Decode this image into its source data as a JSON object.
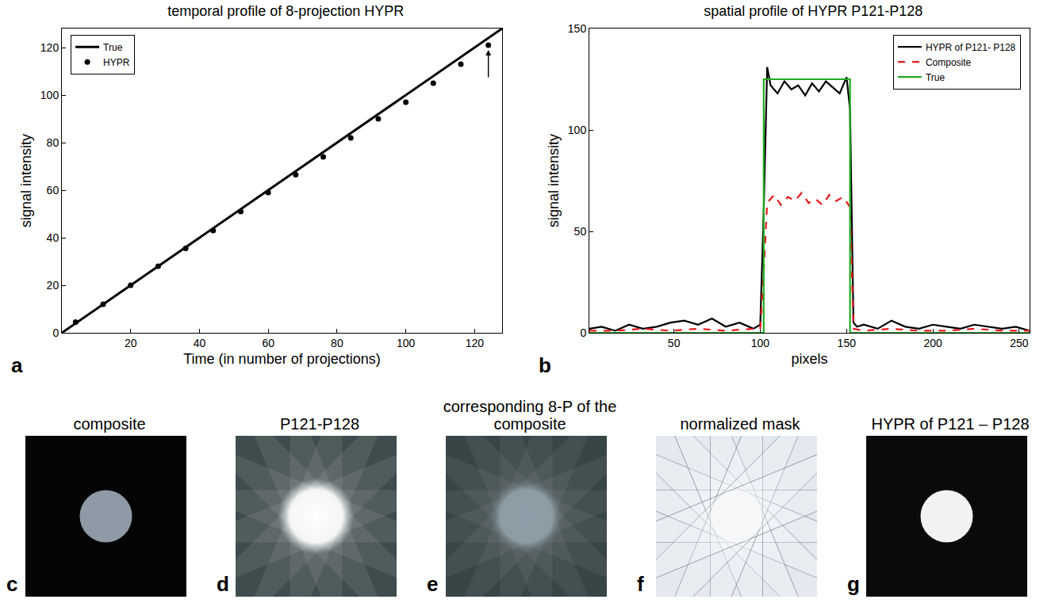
{
  "chart_data": [
    {
      "type": "line",
      "letter": "a",
      "title": "temporal profile of 8-projection HYPR",
      "x_label": "Time (in number of projections)",
      "y_label": "signal intensity",
      "xlim": [
        0,
        128
      ],
      "ylim": [
        0,
        128
      ],
      "xticks": [
        20,
        40,
        60,
        80,
        100,
        120
      ],
      "yticks": [
        0,
        20,
        40,
        60,
        80,
        100,
        120
      ],
      "grid": false,
      "legend": "top-left",
      "series": [
        {
          "name": "True",
          "type": "line",
          "color": "#000000",
          "line_style": "solid",
          "x": [
            0,
            128
          ],
          "values": [
            0,
            128
          ]
        },
        {
          "name": "HYPR",
          "type": "scatter",
          "color": "#000000",
          "marker": "circle",
          "x": [
            4,
            12,
            20,
            28,
            36,
            44,
            52,
            60,
            68,
            76,
            84,
            92,
            100,
            108,
            116,
            124
          ],
          "values": [
            4.5,
            12,
            20,
            28,
            35.5,
            43,
            51,
            59,
            66.5,
            74,
            82,
            90,
            97,
            105,
            113,
            121
          ]
        }
      ]
    },
    {
      "type": "line",
      "letter": "b",
      "title": "spatial profile of HYPR P121-P128",
      "x_label": "pixels",
      "y_label": "signal intensity",
      "xlim": [
        1,
        256
      ],
      "ylim": [
        0,
        150
      ],
      "xticks": [
        50,
        100,
        150,
        200,
        250
      ],
      "yticks": [
        0,
        50,
        100,
        150
      ],
      "grid": false,
      "legend": "top-right",
      "series": [
        {
          "name": "HYPR of P121- P128",
          "type": "line",
          "color": "#000000",
          "line_style": "solid",
          "x": [
            1,
            8,
            16,
            24,
            32,
            40,
            48,
            56,
            64,
            72,
            80,
            88,
            96,
            100,
            102,
            104,
            106,
            110,
            114,
            118,
            122,
            126,
            130,
            134,
            138,
            142,
            146,
            150,
            152,
            154,
            156,
            160,
            168,
            176,
            184,
            192,
            200,
            208,
            216,
            224,
            232,
            240,
            248,
            256
          ],
          "values": [
            2,
            3,
            1,
            4,
            2,
            3,
            5,
            6,
            4,
            7,
            3,
            5,
            2,
            4,
            60,
            131,
            122,
            118,
            124,
            120,
            122,
            117,
            123,
            119,
            124,
            121,
            118,
            126,
            110,
            5,
            3,
            4,
            2,
            6,
            3,
            2,
            4,
            3,
            2,
            4,
            3,
            2,
            3,
            1
          ]
        },
        {
          "name": "Composite",
          "type": "line",
          "color": "#e41a1c",
          "line_style": "dash",
          "x": [
            1,
            16,
            32,
            48,
            64,
            80,
            96,
            100,
            102,
            104,
            108,
            112,
            116,
            120,
            124,
            128,
            132,
            136,
            140,
            144,
            148,
            152,
            154,
            160,
            176,
            192,
            208,
            224,
            240,
            256
          ],
          "values": [
            1,
            1,
            2,
            1,
            2,
            1,
            2,
            2,
            30,
            64,
            68,
            63,
            67,
            65,
            69,
            64,
            66,
            63,
            68,
            65,
            67,
            62,
            2,
            1,
            2,
            1,
            1,
            2,
            1,
            1
          ]
        },
        {
          "name": "True",
          "type": "line",
          "color": "#22aa22",
          "line_style": "solid",
          "x": [
            1,
            102,
            102,
            152,
            152,
            256
          ],
          "values": [
            0,
            0,
            125,
            125,
            0,
            0
          ]
        }
      ]
    }
  ],
  "panels": [
    {
      "letter": "c",
      "title": "composite"
    },
    {
      "letter": "d",
      "title": "P121-P128"
    },
    {
      "letter": "e",
      "title": "corresponding 8-P of the composite"
    },
    {
      "letter": "f",
      "title": "normalized mask"
    },
    {
      "letter": "g",
      "title": "HYPR of P121 – P128"
    }
  ]
}
